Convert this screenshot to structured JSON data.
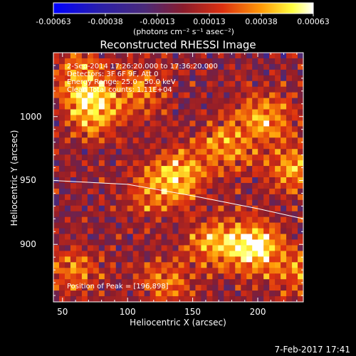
{
  "colorbar": {
    "ticks": [
      "-0.00063",
      "-0.00038",
      "-0.00013",
      "0.00013",
      "0.00038",
      "0.00063"
    ],
    "units": "(photons cm⁻² s⁻¹ asec⁻²)"
  },
  "info": {
    "line1": "2-Sep-2014 17:26:20.000 to 17:36:20.000",
    "line2": "Detectors: 3F 6F 9F, Att 0",
    "line3": "Energy Range: 25.0 - 50.0 keV",
    "line4": "Clean    Total counts: 1.11E+04",
    "peak": "Position of Peak = [196,898]"
  },
  "timestamp": "7-Feb-2017 17:41",
  "chart_data": {
    "type": "heatmap",
    "title": "Reconstructed RHESSI Image",
    "xlabel": "Heliocentric X (arcsec)",
    "ylabel": "Heliocentric Y (arcsec)",
    "xlim": [
      43,
      235
    ],
    "ylim": [
      855,
      1050
    ],
    "xticks": [
      "50",
      "100",
      "150",
      "200"
    ],
    "yticks": [
      "1000",
      "950",
      "900"
    ],
    "grid": false,
    "colormap": "blue-purple-red-yellow-white",
    "vmin": -0.00063,
    "vmax": 0.00063,
    "peak": [
      196,
      898
    ],
    "hot_spots": [
      {
        "x": 75,
        "y": 1005,
        "v": 0.0005
      },
      {
        "x": 62,
        "y": 1030,
        "v": 0.00035
      },
      {
        "x": 110,
        "y": 1020,
        "v": 0.0003
      },
      {
        "x": 140,
        "y": 955,
        "v": 0.0004
      },
      {
        "x": 120,
        "y": 940,
        "v": 0.0003
      },
      {
        "x": 205,
        "y": 1000,
        "v": 0.0004
      },
      {
        "x": 225,
        "y": 960,
        "v": 0.00035
      },
      {
        "x": 175,
        "y": 975,
        "v": 0.00035
      },
      {
        "x": 196,
        "y": 898,
        "v": 0.00063
      },
      {
        "x": 165,
        "y": 900,
        "v": 0.00035
      },
      {
        "x": 60,
        "y": 880,
        "v": 0.0003
      },
      {
        "x": 230,
        "y": 880,
        "v": 0.0003
      },
      {
        "x": 130,
        "y": 870,
        "v": 0.0003
      }
    ],
    "limb_curve": [
      [
        43,
        950
      ],
      [
        100,
        947
      ],
      [
        150,
        938
      ],
      [
        200,
        928
      ],
      [
        235,
        920
      ]
    ]
  }
}
